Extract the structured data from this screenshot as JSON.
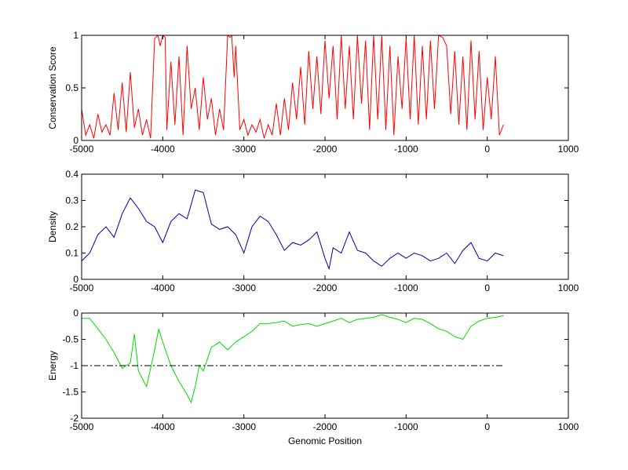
{
  "chart_data": [
    {
      "type": "line",
      "ylabel": "Conservation Score",
      "xlabel": "",
      "xlim": [
        -5000,
        1000
      ],
      "ylim": [
        0,
        1
      ],
      "xticks": [
        -5000,
        -4000,
        -3000,
        -2000,
        -1000,
        0,
        1000
      ],
      "yticks": [
        0,
        0.5,
        1
      ],
      "ytick_labels": [
        "0",
        "0.5",
        "1"
      ],
      "grid": false,
      "series": [
        {
          "color": "#ff0000",
          "x": [
            -5000,
            -4950,
            -4900,
            -4850,
            -4800,
            -4750,
            -4700,
            -4650,
            -4600,
            -4550,
            -4500,
            -4450,
            -4400,
            -4350,
            -4300,
            -4250,
            -4200,
            -4150,
            -4100,
            -4060,
            -4030,
            -4000,
            -3970,
            -3950,
            -3900,
            -3850,
            -3800,
            -3750,
            -3700,
            -3650,
            -3600,
            -3550,
            -3500,
            -3450,
            -3400,
            -3350,
            -3300,
            -3250,
            -3200,
            -3170,
            -3150,
            -3120,
            -3100,
            -3050,
            -3000,
            -2950,
            -2900,
            -2850,
            -2800,
            -2750,
            -2700,
            -2650,
            -2600,
            -2550,
            -2500,
            -2450,
            -2400,
            -2350,
            -2300,
            -2250,
            -2200,
            -2150,
            -2100,
            -2050,
            -2000,
            -1950,
            -1900,
            -1850,
            -1800,
            -1750,
            -1700,
            -1650,
            -1600,
            -1550,
            -1500,
            -1450,
            -1400,
            -1350,
            -1300,
            -1250,
            -1200,
            -1150,
            -1100,
            -1050,
            -1000,
            -950,
            -900,
            -850,
            -800,
            -750,
            -700,
            -650,
            -600,
            -550,
            -500,
            -450,
            -400,
            -350,
            -300,
            -250,
            -200,
            -150,
            -100,
            -50,
            0,
            50,
            100,
            150,
            200
          ],
          "y": [
            0.3,
            0.05,
            0.15,
            0.02,
            0.25,
            0.08,
            0.15,
            0.05,
            0.45,
            0.1,
            0.55,
            0.08,
            0.65,
            0.12,
            0.3,
            0.05,
            0.2,
            0.02,
            0.97,
            1.0,
            0.9,
            1.0,
            0.98,
            0.1,
            0.75,
            0.15,
            0.8,
            0.05,
            0.9,
            0.3,
            0.5,
            0.1,
            0.6,
            0.2,
            0.4,
            0.05,
            0.3,
            0.1,
            1.0,
            0.98,
            1.0,
            0.6,
            0.9,
            0.1,
            0.2,
            0.05,
            0.15,
            0.08,
            0.2,
            0.02,
            0.15,
            0.05,
            0.35,
            0.05,
            0.4,
            0.1,
            0.55,
            0.2,
            0.7,
            0.15,
            0.85,
            0.3,
            0.8,
            0.25,
            0.95,
            0.4,
            0.9,
            0.2,
            1.0,
            0.3,
            0.9,
            0.2,
            1.0,
            0.35,
            0.95,
            0.1,
            1.0,
            0.2,
            1.0,
            0.1,
            0.9,
            0.05,
            0.8,
            0.3,
            0.97,
            0.2,
            1.0,
            0.15,
            0.9,
            0.2,
            0.95,
            0.3,
            1.0,
            0.98,
            0.9,
            0.25,
            0.85,
            0.15,
            0.8,
            0.1,
            0.95,
            0.2,
            0.85,
            0.1,
            0.6,
            0.2,
            0.8,
            0.05,
            0.15
          ]
        }
      ]
    },
    {
      "type": "line",
      "ylabel": "Density",
      "xlabel": "",
      "xlim": [
        -5000,
        1000
      ],
      "ylim": [
        0,
        0.4
      ],
      "xticks": [
        -5000,
        -4000,
        -3000,
        -2000,
        -1000,
        0,
        1000
      ],
      "yticks": [
        0,
        0.1,
        0.2,
        0.3,
        0.4
      ],
      "ytick_labels": [
        "0",
        "0.1",
        "0.2",
        "0.3",
        "0.4"
      ],
      "grid": false,
      "series": [
        {
          "color": "#0000aa",
          "x": [
            -5000,
            -4900,
            -4800,
            -4700,
            -4600,
            -4500,
            -4400,
            -4300,
            -4200,
            -4100,
            -4000,
            -3900,
            -3800,
            -3700,
            -3600,
            -3500,
            -3400,
            -3300,
            -3200,
            -3100,
            -3000,
            -2900,
            -2800,
            -2700,
            -2600,
            -2500,
            -2400,
            -2300,
            -2200,
            -2100,
            -2000,
            -1950,
            -1900,
            -1800,
            -1700,
            -1600,
            -1500,
            -1400,
            -1300,
            -1200,
            -1100,
            -1000,
            -900,
            -800,
            -700,
            -600,
            -500,
            -400,
            -300,
            -200,
            -100,
            0,
            100,
            200
          ],
          "y": [
            0.07,
            0.1,
            0.17,
            0.2,
            0.16,
            0.25,
            0.31,
            0.27,
            0.22,
            0.2,
            0.14,
            0.22,
            0.25,
            0.23,
            0.34,
            0.33,
            0.21,
            0.19,
            0.2,
            0.17,
            0.1,
            0.2,
            0.24,
            0.22,
            0.17,
            0.11,
            0.14,
            0.13,
            0.15,
            0.18,
            0.08,
            0.04,
            0.12,
            0.1,
            0.18,
            0.11,
            0.1,
            0.07,
            0.05,
            0.08,
            0.1,
            0.08,
            0.1,
            0.09,
            0.07,
            0.08,
            0.1,
            0.06,
            0.11,
            0.14,
            0.08,
            0.07,
            0.1,
            0.09
          ]
        }
      ]
    },
    {
      "type": "line",
      "ylabel": "Energy",
      "xlabel": "Genomic Position",
      "xlim": [
        -5000,
        1000
      ],
      "ylim": [
        -2,
        0
      ],
      "xticks": [
        -5000,
        -4000,
        -3000,
        -2000,
        -1000,
        0,
        1000
      ],
      "yticks": [
        -2,
        -1.5,
        -1,
        -0.5,
        0
      ],
      "ytick_labels": [
        "-2",
        "-1.5",
        "-1",
        "-0.5",
        "0"
      ],
      "grid": false,
      "series": [
        {
          "color": "#00dd00",
          "x": [
            -5000,
            -4900,
            -4800,
            -4700,
            -4600,
            -4500,
            -4400,
            -4350,
            -4300,
            -4200,
            -4100,
            -4050,
            -4000,
            -3900,
            -3800,
            -3700,
            -3650,
            -3600,
            -3550,
            -3500,
            -3400,
            -3300,
            -3200,
            -3100,
            -3000,
            -2900,
            -2800,
            -2700,
            -2600,
            -2500,
            -2400,
            -2300,
            -2200,
            -2100,
            -2000,
            -1900,
            -1800,
            -1700,
            -1600,
            -1500,
            -1400,
            -1300,
            -1200,
            -1100,
            -1000,
            -900,
            -800,
            -700,
            -600,
            -500,
            -400,
            -300,
            -200,
            -100,
            0,
            100,
            200
          ],
          "y": [
            -0.1,
            -0.1,
            -0.3,
            -0.5,
            -0.75,
            -1.05,
            -0.95,
            -0.4,
            -1.1,
            -1.4,
            -0.7,
            -0.3,
            -0.55,
            -1.0,
            -1.3,
            -1.55,
            -1.7,
            -1.4,
            -1.0,
            -1.1,
            -0.65,
            -0.55,
            -0.7,
            -0.55,
            -0.45,
            -0.35,
            -0.2,
            -0.2,
            -0.18,
            -0.15,
            -0.25,
            -0.22,
            -0.2,
            -0.25,
            -0.2,
            -0.15,
            -0.1,
            -0.18,
            -0.12,
            -0.1,
            -0.08,
            -0.03,
            -0.08,
            -0.12,
            -0.18,
            -0.1,
            -0.12,
            -0.2,
            -0.3,
            -0.35,
            -0.45,
            -0.5,
            -0.25,
            -0.15,
            -0.1,
            -0.08,
            -0.05
          ]
        },
        {
          "color": "#000000",
          "style": "dash-dot",
          "x": [
            -5000,
            200
          ],
          "y": [
            -1,
            -1
          ]
        }
      ]
    }
  ]
}
